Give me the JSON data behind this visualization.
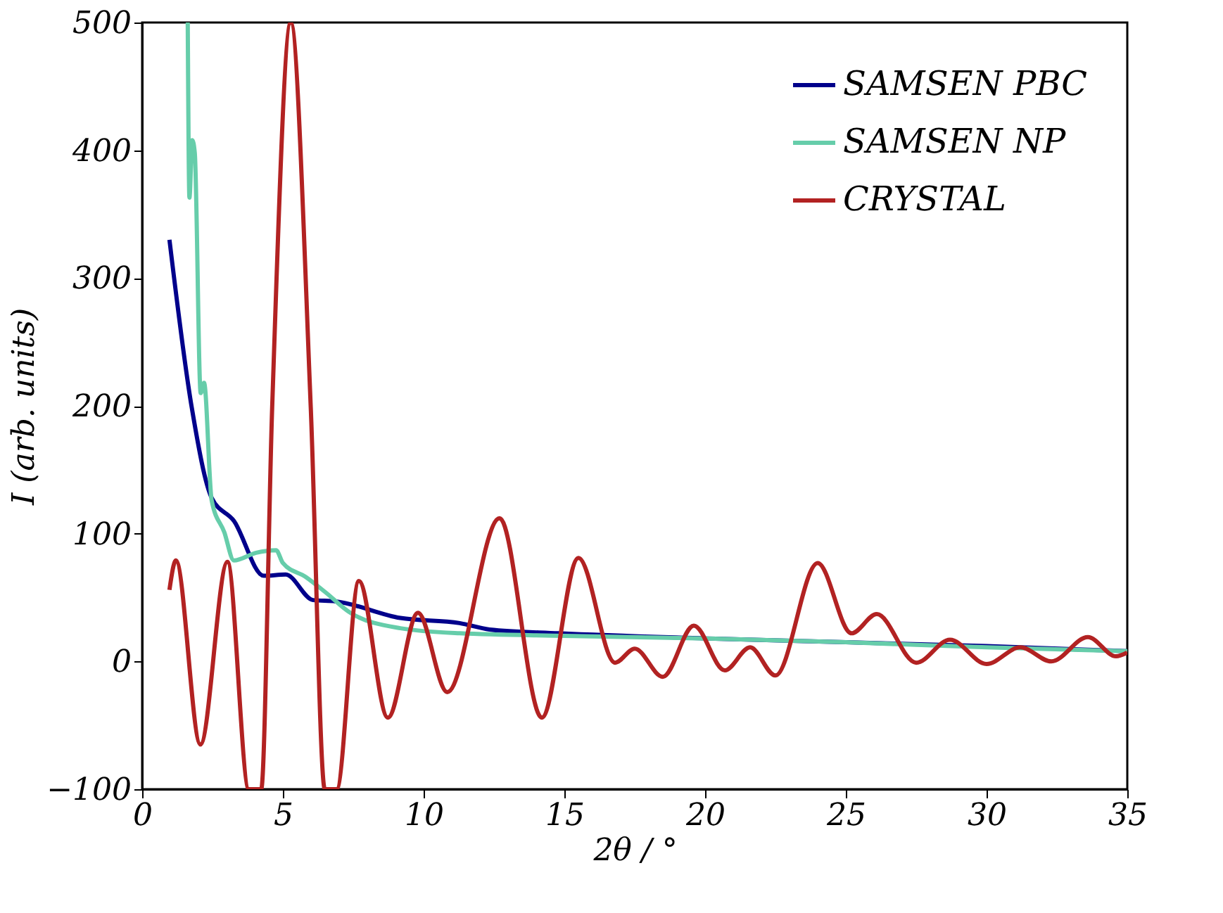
{
  "chart_data": {
    "type": "line",
    "xlabel": "2θ / °",
    "ylabel": "I (arb. units)",
    "xlim": [
      0,
      35
    ],
    "xticks": [
      0,
      5,
      10,
      15,
      20,
      25,
      30,
      35
    ],
    "ylim": [
      -100,
      500
    ],
    "yticks": [
      -100,
      0,
      100,
      200,
      300,
      400,
      500
    ],
    "grid": false,
    "legend": "top right",
    "line_style": "solid",
    "marker": "none",
    "series": [
      {
        "name": "SAMSEN PBC",
        "color": "#00008b",
        "x": [
          0.97,
          1.76,
          2.47,
          3.26,
          4.32,
          5.1,
          6.07,
          6.87,
          9.17,
          11.28,
          12.34,
          14.8,
          20,
          25,
          30,
          35
        ],
        "values": [
          330,
          199,
          128,
          110,
          67,
          68,
          48,
          47,
          34,
          30,
          25,
          22,
          18,
          15,
          12,
          8
        ]
      },
      {
        "name": "SAMSEN NP",
        "color": "#66cdaa",
        "x": [
          1.62,
          1.68,
          1.78,
          1.87,
          2.08,
          2.2,
          2.47,
          2.92,
          3.26,
          4.05,
          4.76,
          5.0,
          5.82,
          6.52,
          7.4,
          9.17,
          11.28,
          15,
          20,
          25,
          30,
          35
        ],
        "values": [
          500,
          363,
          408,
          398,
          210,
          218,
          126,
          101,
          79,
          85,
          87,
          77,
          66,
          54,
          38,
          26,
          22,
          20,
          18,
          15,
          11,
          8
        ]
      },
      {
        "name": "CRYSTAL",
        "color": "#b22222",
        "x": [
          0.97,
          1.2,
          2.07,
          3.03,
          3.79,
          4.23,
          4.62,
          5.28,
          5.99,
          6.49,
          6.91,
          7.7,
          8.73,
          9.8,
          10.84,
          12.7,
          14.2,
          15.5,
          16.8,
          17.5,
          18.5,
          19.6,
          20.7,
          21.6,
          22.5,
          24.0,
          25.2,
          26.1,
          27.5,
          28.7,
          30.0,
          31.2,
          32.3,
          33.6,
          34.6,
          35
        ],
        "values": [
          56,
          79,
          -65,
          78,
          -100,
          -100,
          199,
          500,
          199,
          -100,
          -100,
          63,
          -44,
          38,
          -24,
          112,
          -44,
          81,
          -1,
          10,
          -12,
          28,
          -7,
          11,
          -11,
          77,
          22,
          37,
          -1,
          17,
          -2,
          11,
          0,
          19,
          4,
          7
        ]
      }
    ]
  }
}
